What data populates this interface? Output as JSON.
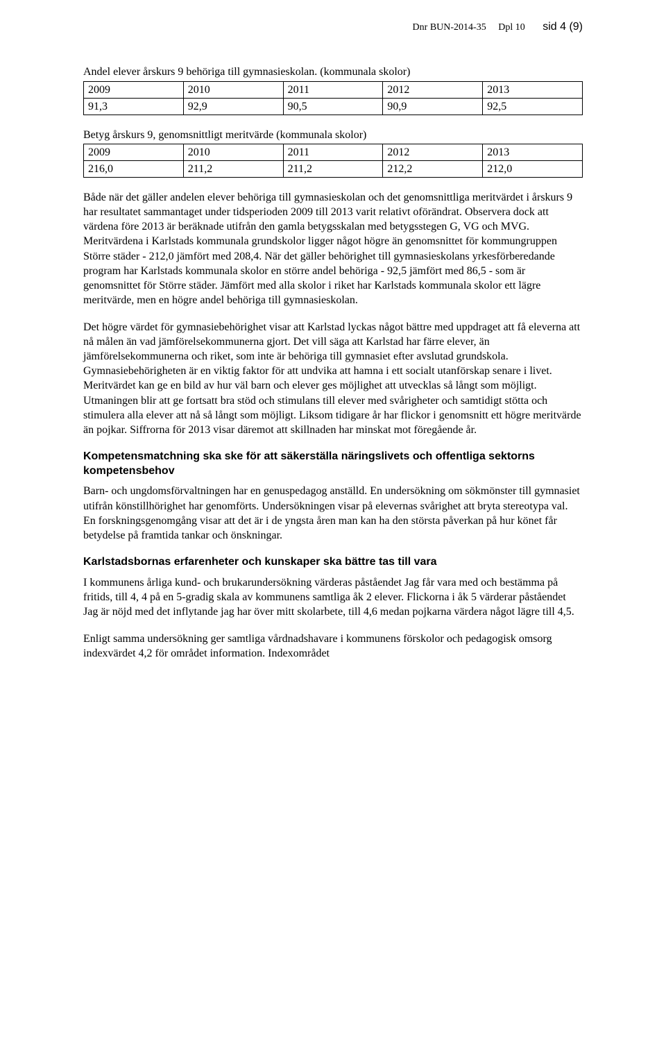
{
  "header": {
    "dnr": "Dnr BUN-2014-35",
    "dpl": "Dpl 10",
    "pagelabel": "sid 4 (9)"
  },
  "table1": {
    "caption": "Andel elever årskurs 9  behöriga till gymnasieskolan. (kommunala skolor)",
    "years": [
      "2009",
      "2010",
      "2011",
      "2012",
      "2013"
    ],
    "values": [
      "91,3",
      "92,9",
      "90,5",
      "90,9",
      "92,5"
    ]
  },
  "table2": {
    "caption": "Betyg årskurs 9, genomsnittligt meritvärde (kommunala skolor)",
    "years": [
      "2009",
      "2010",
      "2011",
      "2012",
      "2013"
    ],
    "values": [
      "216,0",
      "211,2",
      "211,2",
      "212,2",
      "212,0"
    ]
  },
  "para1": "Både när det gäller andelen elever behöriga till gymnasieskolan och det genomsnittliga meritvärdet i årskurs 9 har resultatet sammantaget under tidsperioden 2009 till 2013 varit relativt oförändrat. Observera dock att värdena före 2013 är beräknade utifrån den gamla betygsskalan med betygsstegen G, VG och MVG. Meritvärdena i Karlstads kommunala grundskolor ligger något högre än genomsnittet för kommungruppen Större städer - 212,0 jämfört med 208,4. När det gäller behörighet till gymnasieskolans yrkesförberedande program har Karlstads kommunala skolor en större andel behöriga - 92,5 jämfört med 86,5 - som är genomsnittet för Större städer. Jämfört med alla skolor i riket har Karlstads kommunala skolor ett lägre meritvärde, men en högre andel behöriga till gymnasieskolan.",
  "para2": "Det högre värdet för gymnasiebehörighet visar att Karlstad lyckas något bättre med uppdraget att få eleverna att nå målen än vad jämförelsekommunerna gjort. Det vill säga att Karlstad har färre elever, än jämförelsekommunerna och riket, som inte är behöriga till gymnasiet efter avslutad grundskola. Gymnasiebehörigheten är en viktig faktor för att undvika att hamna i ett socialt utanförskap senare i livet. Meritvärdet kan ge en bild av hur väl barn och elever ges möjlighet att utvecklas så långt som möjligt. Utmaningen blir att ge fortsatt bra stöd och stimulans till elever med svårigheter och samtidigt stötta och stimulera alla elever att nå så långt som möjligt. Liksom tidigare år har flickor i genomsnitt ett högre meritvärde än pojkar. Siffrorna för 2013 visar däremot att skillnaden har minskat mot föregående år.",
  "subhead1": "Kompetensmatchning ska ske för att säkerställa näringslivets och offentliga sektorns kompetensbehov",
  "para3": "Barn- och ungdomsförvaltningen har en genuspedagog anställd. En undersökning om sökmönster till gymnasiet utifrån könstillhörighet har genomförts. Undersökningen visar på elevernas svårighet att bryta stereotypa val. En forskningsgenomgång visar att det är i de yngsta åren man kan ha den största påverkan på hur könet får betydelse på framtida tankar och önskningar.",
  "subhead2": "Karlstadsbornas erfarenheter och kunskaper ska bättre tas till vara",
  "para4": "I kommunens årliga kund- och brukarundersökning värderas påståendet Jag får vara med och bestämma på fritids, till 4, 4 på en 5-gradig skala av kommunens samtliga åk 2 elever. Flickorna i åk 5 värderar påståendet Jag är nöjd med det inflytande jag har över mitt skolarbete, till 4,6 medan pojkarna värdera något lägre till 4,5.",
  "para5": "Enligt samma undersökning ger samtliga vårdnadshavare i kommunens förskolor och pedagogisk omsorg indexvärdet 4,2 för området information. Indexområdet"
}
